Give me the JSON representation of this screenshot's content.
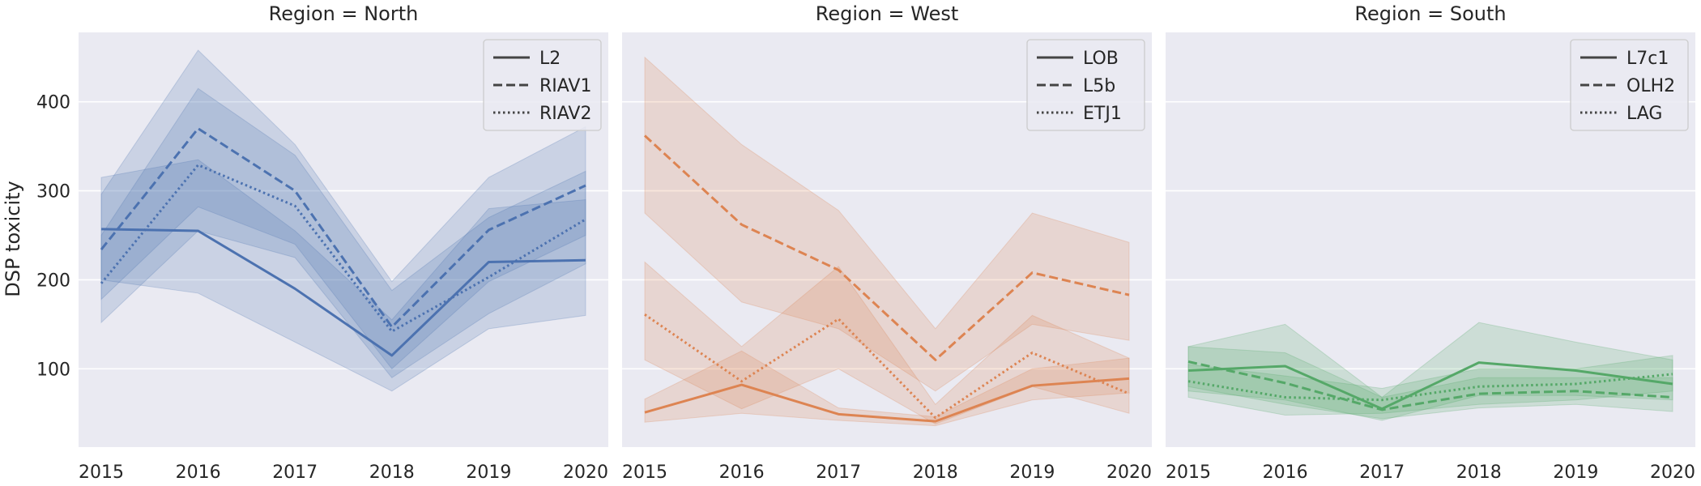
{
  "chart_data": {
    "type": "line",
    "ylabel": "DSP toxicity",
    "x": [
      2015,
      2016,
      2017,
      2018,
      2019,
      2020
    ],
    "xlim": [
      2015,
      2020
    ],
    "ylim": [
      12,
      478
    ],
    "yticks": [
      100,
      200,
      300,
      400
    ],
    "grid": true,
    "legend_placement": "top-right",
    "panels": [
      {
        "title": "Region = North",
        "color": "#4c72b0",
        "series": [
          {
            "name": "L2",
            "dash": "solid",
            "values": [
              257,
              255,
              190,
              115,
              220,
              222
            ],
            "ci_low": [
              200,
              185,
              130,
              75,
              145,
              160
            ],
            "ci_high": [
              315,
              335,
              255,
              155,
              280,
              290
            ]
          },
          {
            "name": "RIAV1",
            "dash": "dashed",
            "values": [
              234,
              370,
              300,
              147,
              256,
              306
            ],
            "ci_low": [
              178,
              282,
              240,
              100,
              198,
              250
            ],
            "ci_high": [
              296,
              458,
              352,
              198,
              315,
              372
            ]
          },
          {
            "name": "RIAV2",
            "dash": "dotted",
            "values": [
              196,
              329,
              283,
              142,
              203,
              268
            ],
            "ci_low": [
              152,
              255,
              225,
              90,
              162,
              218
            ],
            "ci_high": [
              250,
              415,
              340,
              188,
              270,
              322
            ]
          }
        ]
      },
      {
        "title": "Region = West",
        "color": "#dd8452",
        "series": [
          {
            "name": "LOB",
            "dash": "solid",
            "values": [
              51,
              82,
              49,
              41,
              81,
              89
            ],
            "ci_low": [
              40,
              50,
              42,
              36,
              65,
              73
            ],
            "ci_high": [
              66,
              120,
              56,
              46,
              100,
              112
            ]
          },
          {
            "name": "L5b",
            "dash": "dashed",
            "values": [
              362,
              262,
              211,
              110,
              208,
              183
            ],
            "ci_low": [
              275,
              175,
              145,
              75,
              150,
              132
            ],
            "ci_high": [
              450,
              352,
              278,
              145,
              275,
              242
            ]
          },
          {
            "name": "ETJ1",
            "dash": "dotted",
            "values": [
              161,
              86,
              156,
              45,
              118,
              72
            ],
            "ci_low": [
              110,
              55,
              100,
              38,
              80,
              50
            ],
            "ci_high": [
              220,
              125,
              215,
              60,
              160,
              112
            ]
          }
        ]
      },
      {
        "title": "Region = South",
        "color": "#55a868",
        "series": [
          {
            "name": "L7c1",
            "dash": "solid",
            "values": [
              98,
              103,
              55,
              107,
              98,
              83
            ],
            "ci_low": [
              75,
              65,
              42,
              70,
              70,
              65
            ],
            "ci_high": [
              125,
              150,
              68,
              152,
              130,
              110
            ]
          },
          {
            "name": "OLH2",
            "dash": "dashed",
            "values": [
              108,
              84,
              54,
              72,
              75,
              68
            ],
            "ci_low": [
              80,
              60,
              44,
              56,
              60,
              52
            ],
            "ci_high": [
              125,
              118,
              68,
              90,
              90,
              90
            ]
          },
          {
            "name": "LAG",
            "dash": "dotted",
            "values": [
              86,
              68,
              65,
              80,
              83,
              94
            ],
            "ci_low": [
              68,
              48,
              50,
              60,
              65,
              75
            ],
            "ci_high": [
              105,
              92,
              78,
              100,
              100,
              115
            ]
          }
        ]
      }
    ]
  }
}
